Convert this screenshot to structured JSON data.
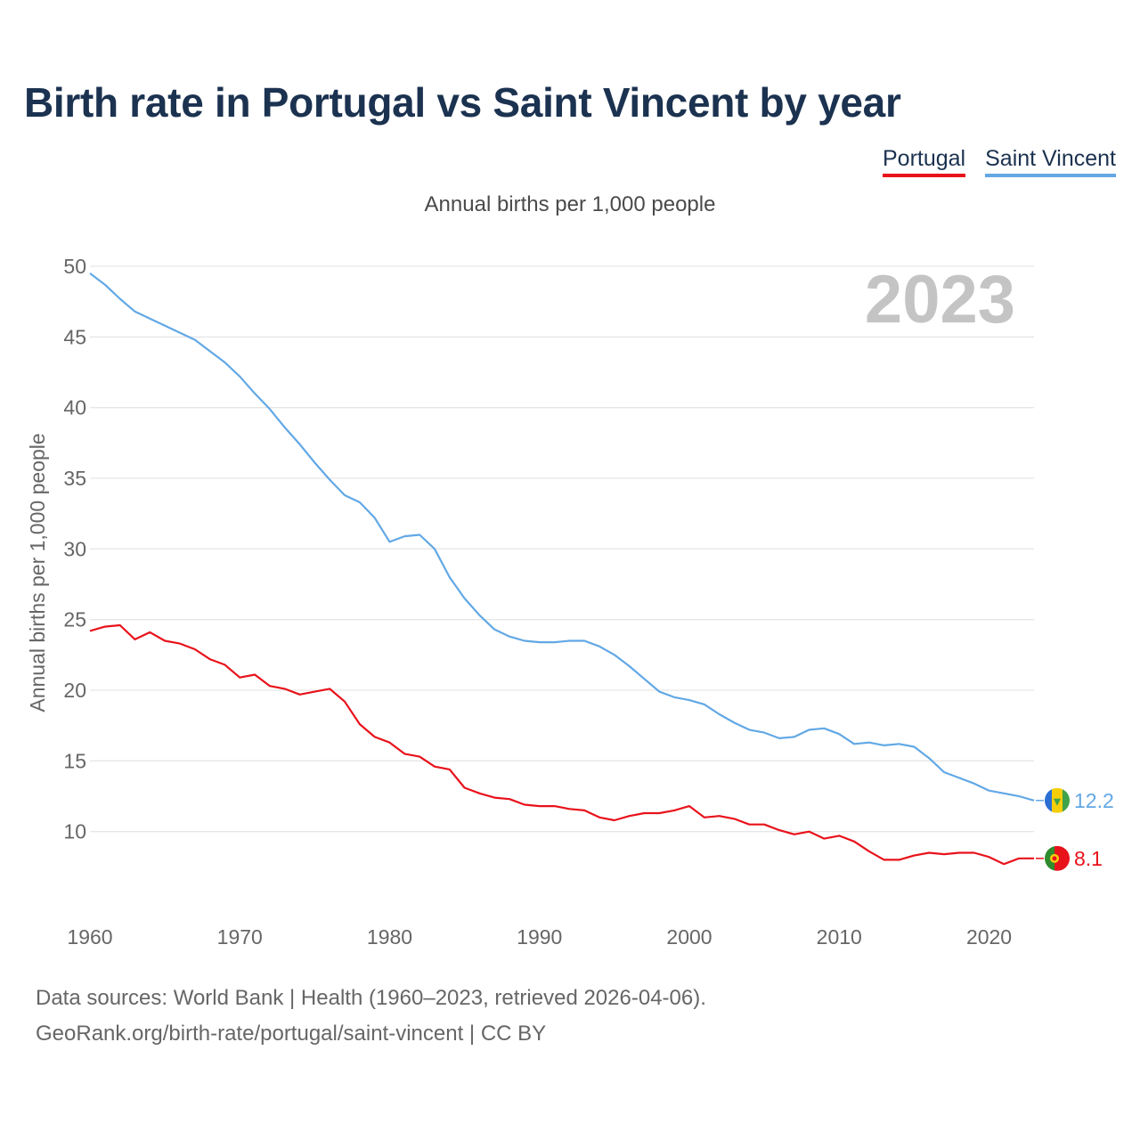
{
  "title": "Birth rate in Portugal vs Saint Vincent by year",
  "legend": {
    "portugal": "Portugal",
    "saint_vincent": "Saint Vincent"
  },
  "subtitle": "Annual births per 1,000 people",
  "year_label": "2023",
  "footer": {
    "line1": "Data sources: World Bank | Health (1960–2023, retrieved 2026-04-06).",
    "line2": "GeoRank.org/birth-rate/portugal/saint-vincent | CC BY"
  },
  "colors": {
    "portugal": "#e8121b",
    "saint_vincent": "#62a8e5",
    "title": "#1b3250"
  },
  "chart_data": {
    "type": "line",
    "title": "Birth rate in Portugal vs Saint Vincent by year",
    "xlabel": "",
    "ylabel": "Annual births per 1,000 people",
    "xlim": [
      1960,
      2023
    ],
    "ylim": [
      5,
      50
    ],
    "yticks": [
      10,
      15,
      20,
      25,
      30,
      35,
      40,
      45,
      50
    ],
    "xticks": [
      1960,
      1970,
      1980,
      1990,
      2000,
      2010,
      2020
    ],
    "x": [
      1960,
      1961,
      1962,
      1963,
      1964,
      1965,
      1966,
      1967,
      1968,
      1969,
      1970,
      1971,
      1972,
      1973,
      1974,
      1975,
      1976,
      1977,
      1978,
      1979,
      1980,
      1981,
      1982,
      1983,
      1984,
      1985,
      1986,
      1987,
      1988,
      1989,
      1990,
      1991,
      1992,
      1993,
      1994,
      1995,
      1996,
      1997,
      1998,
      1999,
      2000,
      2001,
      2002,
      2003,
      2004,
      2005,
      2006,
      2007,
      2008,
      2009,
      2010,
      2011,
      2012,
      2013,
      2014,
      2015,
      2016,
      2017,
      2018,
      2019,
      2020,
      2021,
      2022,
      2023
    ],
    "series": [
      {
        "name": "Portugal",
        "values": [
          24.2,
          24.5,
          24.6,
          23.6,
          24.1,
          23.5,
          23.3,
          22.9,
          22.2,
          21.8,
          20.9,
          21.1,
          20.3,
          20.1,
          19.7,
          19.9,
          20.1,
          19.2,
          17.6,
          16.7,
          16.3,
          15.5,
          15.3,
          14.6,
          14.4,
          13.1,
          12.7,
          12.4,
          12.3,
          11.9,
          11.8,
          11.8,
          11.6,
          11.5,
          11.0,
          10.8,
          11.1,
          11.3,
          11.3,
          11.5,
          11.8,
          11.0,
          11.1,
          10.9,
          10.5,
          10.5,
          10.1,
          9.8,
          10.0,
          9.5,
          9.7,
          9.3,
          8.6,
          8.0,
          8.0,
          8.3,
          8.5,
          8.4,
          8.5,
          8.5,
          8.2,
          7.7,
          8.1,
          8.1
        ],
        "end_label": "8.1"
      },
      {
        "name": "Saint Vincent",
        "values": [
          49.5,
          48.7,
          47.7,
          46.8,
          46.3,
          45.8,
          45.3,
          44.8,
          44.0,
          43.2,
          42.2,
          41.0,
          39.9,
          38.6,
          37.4,
          36.1,
          34.9,
          33.8,
          33.3,
          32.2,
          30.5,
          30.9,
          31.0,
          30.0,
          28.0,
          26.5,
          25.3,
          24.3,
          23.8,
          23.5,
          23.4,
          23.4,
          23.5,
          23.5,
          23.1,
          22.5,
          21.7,
          20.8,
          19.9,
          19.5,
          19.3,
          19.0,
          18.3,
          17.7,
          17.2,
          17.0,
          16.6,
          16.7,
          17.2,
          17.3,
          16.9,
          16.2,
          16.3,
          16.1,
          16.2,
          16.0,
          15.2,
          14.2,
          13.8,
          13.4,
          12.9,
          12.7,
          12.5,
          12.2
        ],
        "end_label": "12.2"
      }
    ]
  }
}
